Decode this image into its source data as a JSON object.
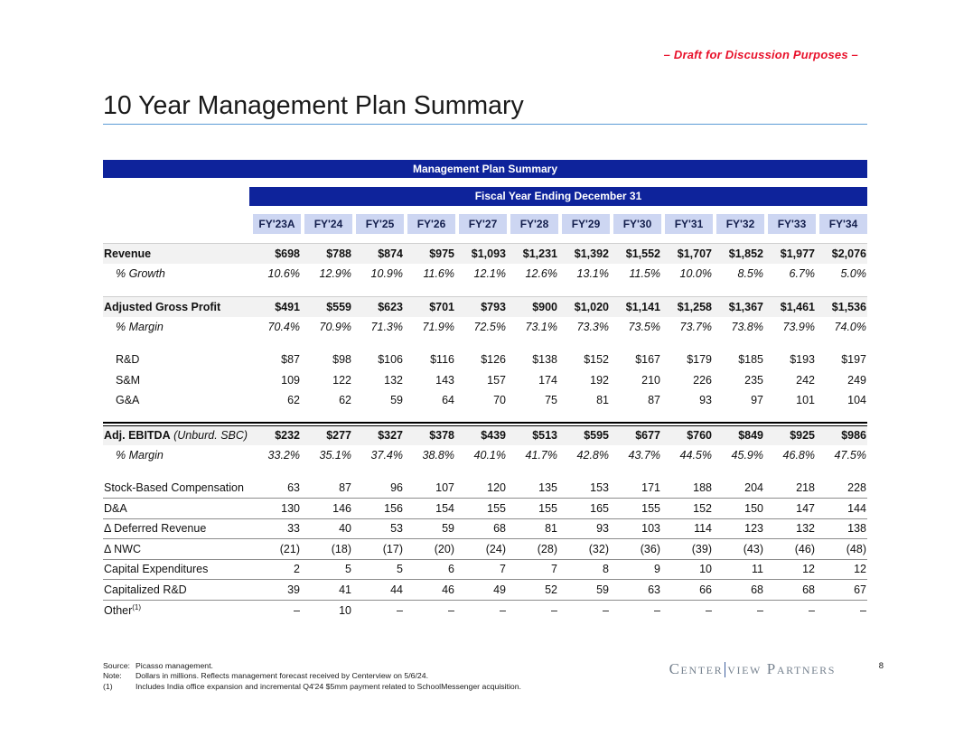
{
  "page": {
    "draft_notice": "– Draft for Discussion Purposes –",
    "title": "10 Year Management Plan Summary",
    "page_number": "8"
  },
  "table": {
    "banner": "Management Plan Summary",
    "sub_banner": "Fiscal Year Ending December 31",
    "columns": [
      "FY'23A",
      "FY'24",
      "FY'25",
      "FY'26",
      "FY'27",
      "FY'28",
      "FY'29",
      "FY'30",
      "FY'31",
      "FY'32",
      "FY'33",
      "FY'34"
    ],
    "rows": [
      {
        "type": "band",
        "label": "Revenue",
        "values": [
          "$698",
          "$788",
          "$874",
          "$975",
          "$1,093",
          "$1,231",
          "$1,392",
          "$1,552",
          "$1,707",
          "$1,852",
          "$1,977",
          "$2,076"
        ]
      },
      {
        "type": "pct",
        "label": "% Growth",
        "values": [
          "10.6%",
          "12.9%",
          "10.9%",
          "11.6%",
          "12.1%",
          "12.6%",
          "13.1%",
          "11.5%",
          "10.0%",
          "8.5%",
          "6.7%",
          "5.0%"
        ]
      },
      {
        "type": "spacer"
      },
      {
        "type": "band",
        "label": "Adjusted Gross Profit",
        "values": [
          "$491",
          "$559",
          "$623",
          "$701",
          "$793",
          "$900",
          "$1,020",
          "$1,141",
          "$1,258",
          "$1,367",
          "$1,461",
          "$1,536"
        ]
      },
      {
        "type": "pct",
        "label": "% Margin",
        "values": [
          "70.4%",
          "70.9%",
          "71.3%",
          "71.9%",
          "72.5%",
          "73.1%",
          "73.3%",
          "73.5%",
          "73.7%",
          "73.8%",
          "73.9%",
          "74.0%"
        ]
      },
      {
        "type": "spacer"
      },
      {
        "type": "indent",
        "label": "R&D",
        "values": [
          "$87",
          "$98",
          "$106",
          "$116",
          "$126",
          "$138",
          "$152",
          "$167",
          "$179",
          "$185",
          "$193",
          "$197"
        ]
      },
      {
        "type": "indent",
        "label": "S&M",
        "values": [
          "109",
          "122",
          "132",
          "143",
          "157",
          "174",
          "192",
          "210",
          "226",
          "235",
          "242",
          "249"
        ]
      },
      {
        "type": "indent",
        "label": "G&A",
        "values": [
          "62",
          "62",
          "59",
          "64",
          "70",
          "75",
          "81",
          "87",
          "93",
          "97",
          "101",
          "104"
        ]
      },
      {
        "type": "spacer-sm"
      },
      {
        "type": "band-total",
        "label": "Adj. EBITDA",
        "label_suffix": " (Unburd. SBC)",
        "values": [
          "$232",
          "$277",
          "$327",
          "$378",
          "$439",
          "$513",
          "$595",
          "$677",
          "$760",
          "$849",
          "$925",
          "$986"
        ]
      },
      {
        "type": "pct",
        "label": "% Margin",
        "values": [
          "33.2%",
          "35.1%",
          "37.4%",
          "38.8%",
          "40.1%",
          "41.7%",
          "42.8%",
          "43.7%",
          "44.5%",
          "45.9%",
          "46.8%",
          "47.5%"
        ]
      },
      {
        "type": "spacer"
      },
      {
        "type": "lined",
        "label": "Stock-Based Compensation",
        "values": [
          "63",
          "87",
          "96",
          "107",
          "120",
          "135",
          "153",
          "171",
          "188",
          "204",
          "218",
          "228"
        ]
      },
      {
        "type": "lined",
        "label": "D&A",
        "values": [
          "130",
          "146",
          "156",
          "154",
          "155",
          "155",
          "165",
          "155",
          "152",
          "150",
          "147",
          "144"
        ]
      },
      {
        "type": "lined",
        "label": "Δ Deferred Revenue",
        "values": [
          "33",
          "40",
          "53",
          "59",
          "68",
          "81",
          "93",
          "103",
          "114",
          "123",
          "132",
          "138"
        ]
      },
      {
        "type": "lined",
        "label": "Δ NWC",
        "values": [
          "(21)",
          "(18)",
          "(17)",
          "(20)",
          "(24)",
          "(28)",
          "(32)",
          "(36)",
          "(39)",
          "(43)",
          "(46)",
          "(48)"
        ]
      },
      {
        "type": "lined",
        "label": "Capital Expenditures",
        "values": [
          "2",
          "5",
          "5",
          "6",
          "7",
          "7",
          "8",
          "9",
          "10",
          "11",
          "12",
          "12"
        ]
      },
      {
        "type": "lined",
        "label": "Capitalized R&D",
        "values": [
          "39",
          "41",
          "44",
          "46",
          "49",
          "52",
          "59",
          "63",
          "66",
          "68",
          "68",
          "67"
        ]
      },
      {
        "type": "plain",
        "label": "Other",
        "label_sup": "(1)",
        "values": [
          "–",
          "10",
          "–",
          "–",
          "–",
          "–",
          "–",
          "–",
          "–",
          "–",
          "–",
          "–"
        ]
      }
    ]
  },
  "footer": {
    "source_label": "Source:",
    "source_text": "Picasso management.",
    "note_label": "Note:",
    "note_text": "Dollars in millions. Reflects management forecast received by Centerview on 5/6/24.",
    "fn1_label": "(1)",
    "fn1_text": "Includes India office expansion and incremental Q4'24 $5mm payment related to SchoolMessenger acquisition.",
    "logo_left": "Center",
    "logo_right": "view Partners"
  },
  "colors": {
    "banner_blue": "#0e239b",
    "header_cell_blue": "#cdd6f2",
    "band_gray": "#f2f2f2",
    "accent_rule_blue": "#5b9bd5",
    "draft_red": "#e8112a",
    "logo_gray": "#76828f"
  }
}
